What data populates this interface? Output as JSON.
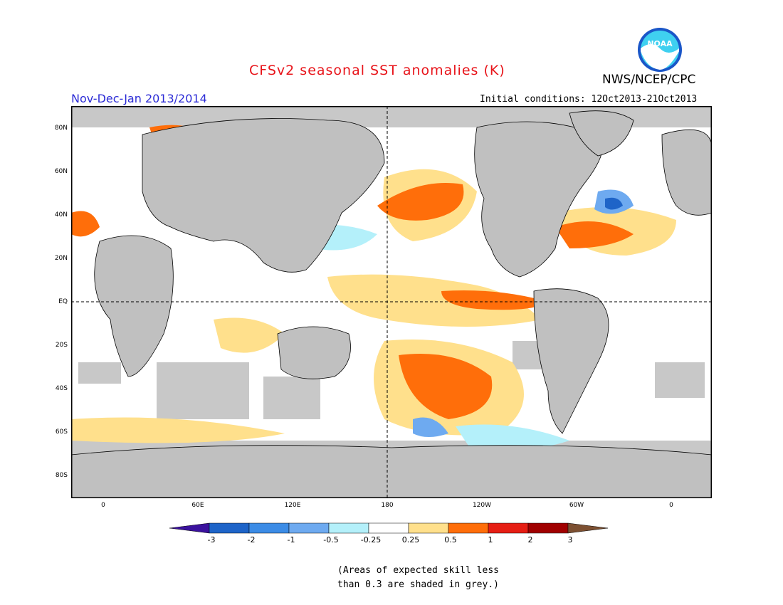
{
  "title": "CFSv2 seasonal SST anomalies (K)",
  "agency": "NWS/NCEP/CPC",
  "logo_text": "NOAA",
  "period": "Nov-Dec-Jan 2013/2014",
  "initial_conditions": "Initial conditions: 12Oct2013-21Oct2013",
  "lat_labels": [
    "80N",
    "60N",
    "40N",
    "20N",
    "EQ",
    "20S",
    "40S",
    "60S",
    "80S"
  ],
  "lon_labels": [
    "0",
    "60E",
    "120E",
    "180",
    "120W",
    "60W",
    "0"
  ],
  "colorbar": {
    "ticks": [
      "-3",
      "-2",
      "-1",
      "-0.5",
      "-0.25",
      "0.25",
      "0.5",
      "1",
      "2",
      "3"
    ],
    "colors": [
      "#3b129e",
      "#1e64c8",
      "#3c8ce6",
      "#6eaaf0",
      "#b4f0fa",
      "#ffffff",
      "#ffe08c",
      "#ff6e0a",
      "#e61e14",
      "#a00000",
      "#7d5032"
    ]
  },
  "note_lines": [
    "(Areas of expected skill less",
    "than 0.3 are shaded in grey.)"
  ],
  "colors": {
    "title": "#e8141a",
    "period": "#2b2bd6",
    "land": "#c0c0c0",
    "low_skill": "#c8c8c8",
    "warm_weak": "#ffe08c",
    "warm_mid": "#ff6e0a",
    "warm_strong": "#e61e14",
    "cool_weak": "#b4f0fa",
    "cool_mid": "#6eaaf0",
    "cool_strong": "#1e64c8"
  }
}
